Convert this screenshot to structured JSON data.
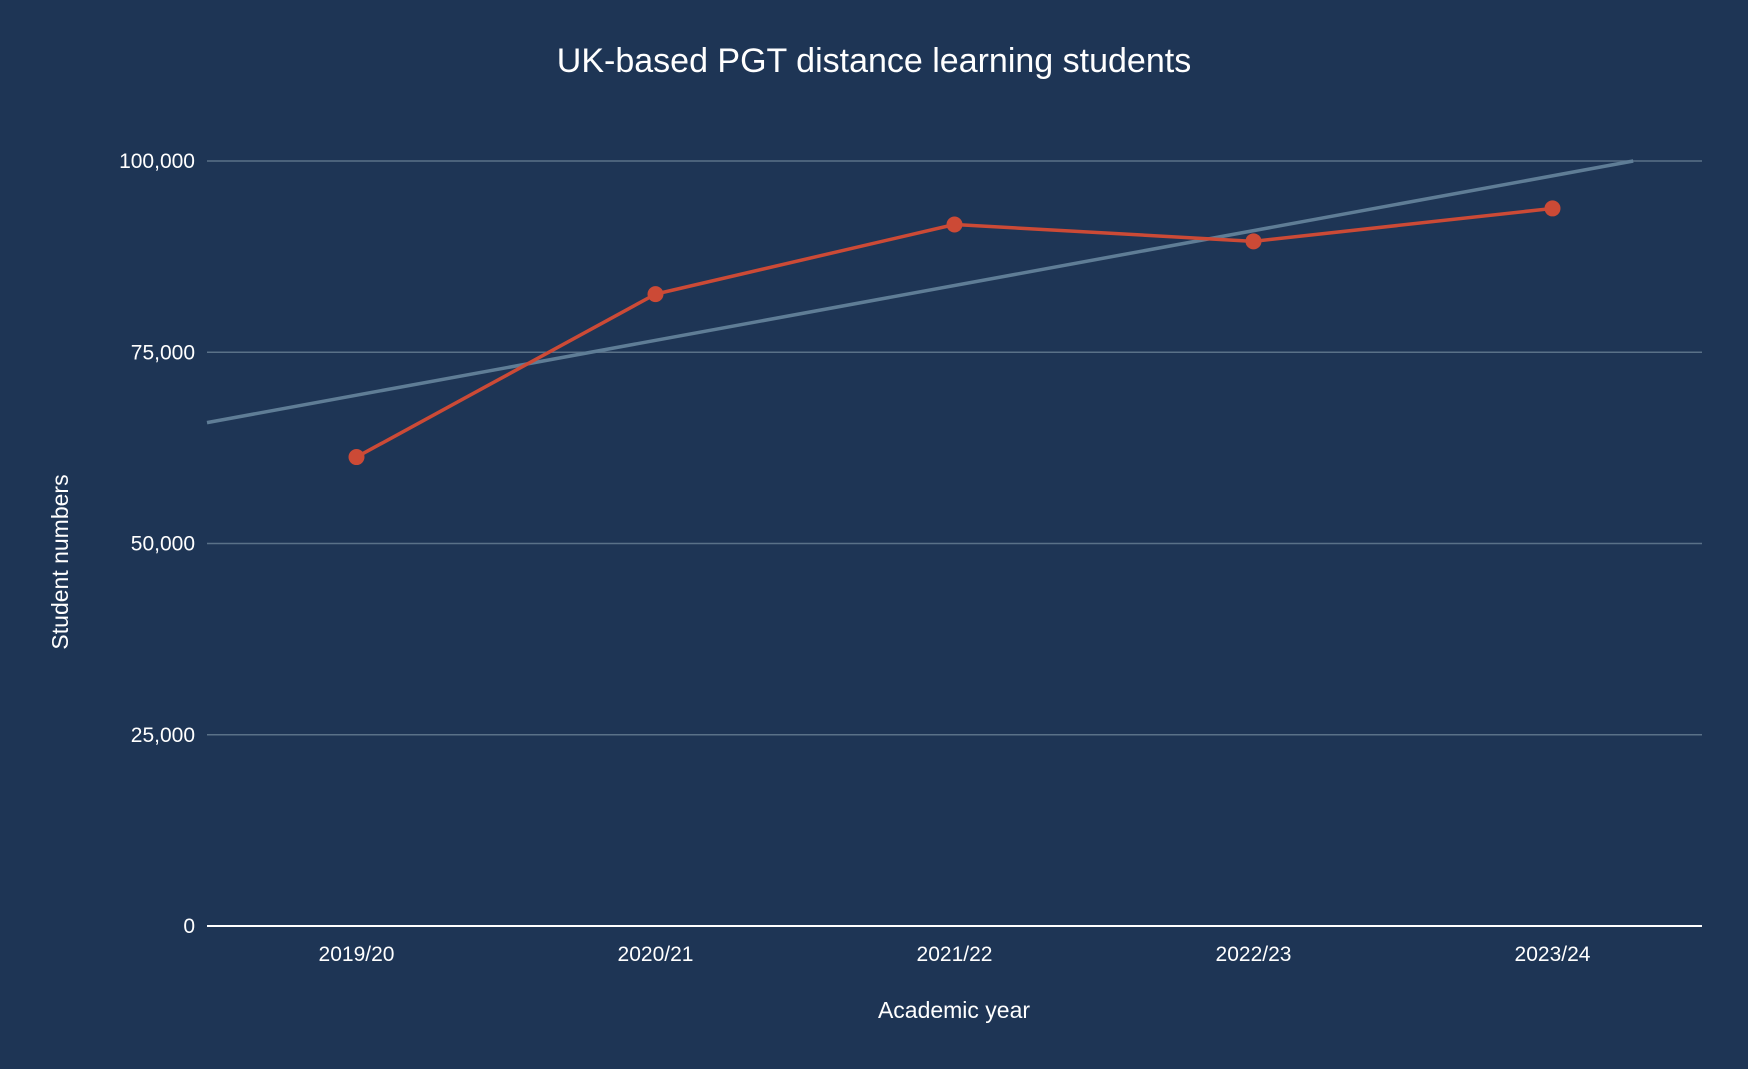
{
  "chart_data": {
    "type": "line",
    "title": "UK-based PGT distance learning students",
    "xlabel": "Academic year",
    "ylabel": "Student numbers",
    "categories": [
      "2019/20",
      "2020/21",
      "2021/22",
      "2022/23",
      "2023/24"
    ],
    "series": [
      {
        "values": [
          61300,
          82600,
          91700,
          89500,
          93800
        ],
        "color": "#cc4a36",
        "markers": true
      }
    ],
    "trendline": {
      "color": "#5f7d96",
      "start_value": 65800,
      "end_value": 100000
    },
    "ylim": [
      0,
      100000
    ],
    "yticks": [
      "0",
      "25,000",
      "50,000",
      "75,000",
      "100,000"
    ],
    "ytick_values": [
      0,
      25000,
      50000,
      75000,
      100000
    ],
    "grid": true,
    "legend": "none",
    "colors": {
      "background": "#1e3555",
      "gridline": "#5a7188",
      "baseline": "#ffffff",
      "text": "#ffffff"
    }
  }
}
